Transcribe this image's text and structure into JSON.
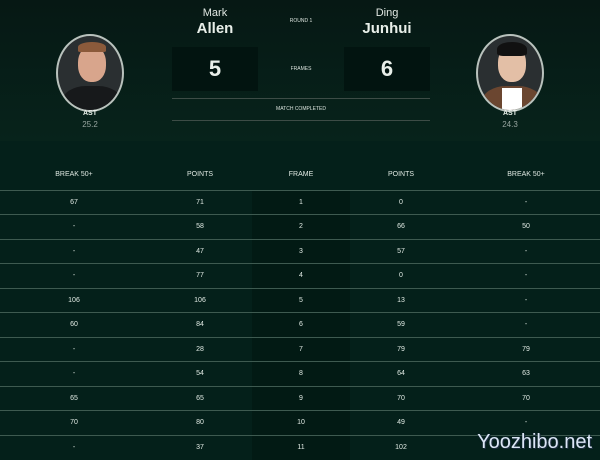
{
  "match": {
    "round": "ROUND 1",
    "frames_label": "FRAMES",
    "status": "MATCH COMPLETED"
  },
  "player1": {
    "first": "Mark",
    "last": "Allen",
    "score": "5",
    "stat_label": "AST",
    "stat_value": "25.2"
  },
  "player2": {
    "first": "Ding",
    "last": "Junhui",
    "score": "6",
    "stat_label": "AST",
    "stat_value": "24.3"
  },
  "table": {
    "headers": [
      "BREAK 50+",
      "POINTS",
      "FRAME",
      "POINTS",
      "BREAK 50+"
    ],
    "rows": [
      [
        "67",
        "71",
        "1",
        "0",
        "-"
      ],
      [
        "-",
        "58",
        "2",
        "66",
        "50"
      ],
      [
        "-",
        "47",
        "3",
        "57",
        "-"
      ],
      [
        "-",
        "77",
        "4",
        "0",
        "-"
      ],
      [
        "106",
        "106",
        "5",
        "13",
        "-"
      ],
      [
        "60",
        "84",
        "6",
        "59",
        "-"
      ],
      [
        "-",
        "28",
        "7",
        "79",
        "79"
      ],
      [
        "-",
        "54",
        "8",
        "64",
        "63"
      ],
      [
        "65",
        "65",
        "9",
        "70",
        "70"
      ],
      [
        "70",
        "80",
        "10",
        "49",
        "-"
      ],
      [
        "-",
        "37",
        "11",
        "102",
        ""
      ]
    ]
  },
  "watermark": "Yoozhibo.net"
}
